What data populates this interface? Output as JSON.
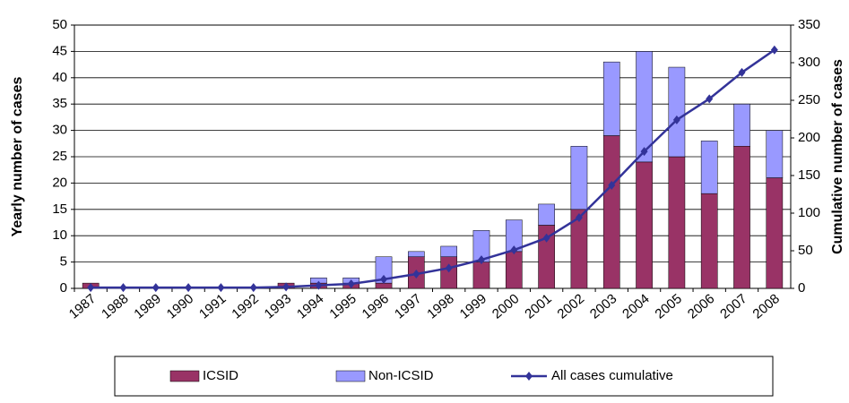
{
  "chart_data": {
    "type": "bar",
    "categories": [
      "1987",
      "1988",
      "1989",
      "1990",
      "1991",
      "1992",
      "1993",
      "1994",
      "1995",
      "1996",
      "1997",
      "1998",
      "1999",
      "2000",
      "2001",
      "2002",
      "2003",
      "2004",
      "2005",
      "2006",
      "2007",
      "2008"
    ],
    "series": [
      {
        "name": "ICSID",
        "color": "#993366",
        "values": [
          1,
          0,
          0,
          0,
          0,
          0,
          1,
          1,
          1,
          1,
          6,
          6,
          5,
          7,
          12,
          15,
          29,
          24,
          25,
          18,
          27,
          21
        ]
      },
      {
        "name": "Non-ICSID",
        "color": "#9999ff",
        "values": [
          0,
          0,
          0,
          0,
          0,
          0,
          0,
          1,
          1,
          5,
          1,
          2,
          6,
          6,
          4,
          12,
          14,
          21,
          17,
          10,
          8,
          9
        ]
      },
      {
        "name": "All cases cumulative",
        "color": "#333399",
        "type": "line",
        "axis": "y2",
        "values": [
          1,
          1,
          1,
          1,
          1,
          1,
          2,
          4,
          6,
          12,
          19,
          27,
          38,
          51,
          67,
          94,
          137,
          182,
          224,
          252,
          287,
          317
        ]
      }
    ],
    "stacked": true,
    "ylabel": "Yearly number of cases",
    "y2label": "Cumulative number of cases",
    "ylim": [
      0,
      50
    ],
    "yticks": [
      0,
      5,
      10,
      15,
      20,
      25,
      30,
      35,
      40,
      45,
      50
    ],
    "y2lim": [
      0,
      350
    ],
    "y2ticks": [
      0,
      50,
      100,
      150,
      200,
      250,
      300,
      350
    ],
    "grid": true,
    "legend": "bottom"
  }
}
